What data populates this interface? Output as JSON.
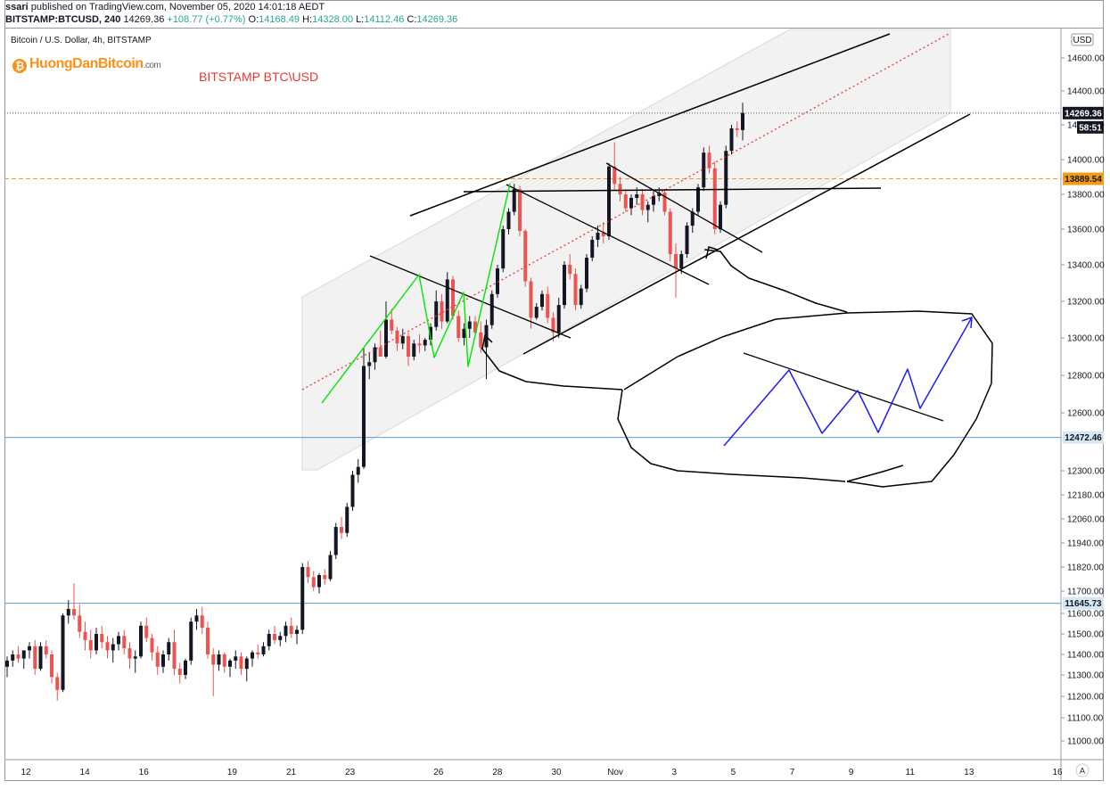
{
  "publish": {
    "user": "ssari",
    "text": " published on TradingView.com, November 05, 2020 14:01:18 AEDT"
  },
  "quote": {
    "symbol": "BITSTAMP:BTCUSD, 240",
    "last": "14269.36",
    "change": "+108.77 (+0.77%)",
    "o_label": "O:",
    "o": "14168.49",
    "h_label": "H:",
    "h": "14328.00",
    "l_label": "L:",
    "l": "14112.46",
    "c_label": "C:",
    "c": "14269.36"
  },
  "header": {
    "symbol_title": "Bitcoin / U.S. Dollar, 4h, BITSTAMP",
    "brand": "HuongDanBitcoin",
    "brand_domain": ".com"
  },
  "annotation": "BITSTAMP BTC\\USD",
  "colors": {
    "up": "#131722",
    "down": "#ef5350",
    "green_lines": "#00e600",
    "blue_pattern": "#1e1ef0",
    "hline": "#5b9bd5",
    "orange": "#f39c12",
    "channel_mid": "#e53935"
  },
  "chart_data": {
    "type": "candlestick",
    "symbol": "BTCUSD",
    "timeframe": "4h",
    "currency_label": "USD",
    "price_ticks": [
      "14600.00",
      "14400.00",
      "14200.00",
      "14000.00",
      "13800.00",
      "13600.00",
      "13400.00",
      "13200.00",
      "13000.00",
      "12800.00",
      "12600.00",
      "12300.00",
      "12180.00",
      "12060.00",
      "11940.00",
      "11820.00",
      "11700.00",
      "11600.00",
      "11500.00",
      "11400.00",
      "11300.00",
      "11200.00",
      "11100.00",
      "11000.00"
    ],
    "time_ticks": [
      "12",
      "14",
      "16",
      "19",
      "21",
      "23",
      "26",
      "28",
      "30",
      "Nov",
      "3",
      "5",
      "7",
      "9",
      "11",
      "13",
      "16"
    ],
    "price_labels": [
      {
        "value": "14269.36",
        "style": "last"
      },
      {
        "value": "58:51",
        "style": "countdown"
      },
      {
        "value": "13889.54",
        "style": "orange"
      },
      {
        "value": "12472.46",
        "style": "blue"
      },
      {
        "value": "11645.73",
        "style": "blue"
      }
    ],
    "horizontal_lines": [
      {
        "price": 14269.36,
        "style": "dotted"
      },
      {
        "price": 13889.54,
        "style": "dashed-orange"
      },
      {
        "price": 12472.46,
        "style": "blue"
      },
      {
        "price": 11645.73,
        "style": "blue"
      }
    ],
    "candles": [
      [
        11340,
        11390,
        11290,
        11370
      ],
      [
        11370,
        11420,
        11340,
        11400
      ],
      [
        11400,
        11440,
        11360,
        11380
      ],
      [
        11380,
        11410,
        11330,
        11420
      ],
      [
        11420,
        11460,
        11380,
        11440
      ],
      [
        11440,
        11470,
        11300,
        11330
      ],
      [
        11330,
        11460,
        11320,
        11440
      ],
      [
        11440,
        11470,
        11380,
        11400
      ],
      [
        11400,
        11420,
        11260,
        11290
      ],
      [
        11290,
        11310,
        11180,
        11230
      ],
      [
        11230,
        11600,
        11220,
        11590
      ],
      [
        11590,
        11660,
        11550,
        11620
      ],
      [
        11620,
        11740,
        11570,
        11590
      ],
      [
        11590,
        11640,
        11480,
        11510
      ],
      [
        11510,
        11560,
        11420,
        11470
      ],
      [
        11470,
        11520,
        11380,
        11420
      ],
      [
        11420,
        11530,
        11400,
        11500
      ],
      [
        11500,
        11540,
        11430,
        11460
      ],
      [
        11460,
        11490,
        11380,
        11420
      ],
      [
        11420,
        11480,
        11360,
        11450
      ],
      [
        11450,
        11510,
        11420,
        11490
      ],
      [
        11490,
        11520,
        11400,
        11430
      ],
      [
        11430,
        11460,
        11330,
        11380
      ],
      [
        11380,
        11420,
        11310,
        11390
      ],
      [
        11390,
        11560,
        11380,
        11540
      ],
      [
        11540,
        11580,
        11460,
        11480
      ],
      [
        11480,
        11500,
        11370,
        11410
      ],
      [
        11410,
        11440,
        11300,
        11340
      ],
      [
        11340,
        11420,
        11310,
        11400
      ],
      [
        11400,
        11480,
        11370,
        11460
      ],
      [
        11460,
        11520,
        11300,
        11330
      ],
      [
        11330,
        11360,
        11260,
        11300
      ],
      [
        11300,
        11380,
        11280,
        11370
      ],
      [
        11370,
        11580,
        11350,
        11560
      ],
      [
        11560,
        11620,
        11520,
        11590
      ],
      [
        11590,
        11630,
        11500,
        11530
      ],
      [
        11530,
        11560,
        11380,
        11400
      ],
      [
        11400,
        11430,
        11200,
        11350
      ],
      [
        11350,
        11420,
        11320,
        11400
      ],
      [
        11400,
        11410,
        11310,
        11340
      ],
      [
        11340,
        11380,
        11290,
        11370
      ],
      [
        11370,
        11420,
        11330,
        11390
      ],
      [
        11390,
        11410,
        11300,
        11330
      ],
      [
        11330,
        11390,
        11270,
        11380
      ],
      [
        11380,
        11420,
        11340,
        11410
      ],
      [
        11410,
        11450,
        11380,
        11400
      ],
      [
        11400,
        11460,
        11390,
        11440
      ],
      [
        11440,
        11520,
        11420,
        11500
      ],
      [
        11500,
        11540,
        11450,
        11470
      ],
      [
        11470,
        11510,
        11440,
        11490
      ],
      [
        11490,
        11560,
        11460,
        11540
      ],
      [
        11540,
        11580,
        11480,
        11500
      ],
      [
        11500,
        11540,
        11450,
        11520
      ],
      [
        11520,
        11840,
        11500,
        11820
      ],
      [
        11820,
        11850,
        11740,
        11770
      ],
      [
        11770,
        11800,
        11700,
        11720
      ],
      [
        11720,
        11790,
        11690,
        11780
      ],
      [
        11780,
        11810,
        11730,
        11760
      ],
      [
        11760,
        11900,
        11750,
        11880
      ],
      [
        11880,
        12040,
        11860,
        12020
      ],
      [
        12020,
        12070,
        11960,
        11990
      ],
      [
        11990,
        12140,
        11970,
        12120
      ],
      [
        12120,
        12300,
        12100,
        12280
      ],
      [
        12280,
        12360,
        12240,
        12320
      ],
      [
        12320,
        12950,
        12310,
        12850
      ],
      [
        12850,
        12920,
        12780,
        12870
      ],
      [
        12870,
        12970,
        12830,
        12950
      ],
      [
        12950,
        13040,
        12900,
        12900
      ],
      [
        12900,
        13200,
        12890,
        13100
      ],
      [
        13100,
        13160,
        13020,
        13040
      ],
      [
        13040,
        13060,
        12930,
        12970
      ],
      [
        12970,
        13050,
        12940,
        13010
      ],
      [
        13010,
        13030,
        12850,
        12900
      ],
      [
        12900,
        12990,
        12880,
        12970
      ],
      [
        12970,
        13020,
        12920,
        12960
      ],
      [
        12960,
        13000,
        12930,
        12990
      ],
      [
        12990,
        13080,
        12960,
        13060
      ],
      [
        13060,
        13260,
        13040,
        13200
      ],
      [
        13200,
        13240,
        13050,
        13090
      ],
      [
        13090,
        13360,
        13080,
        13320
      ],
      [
        13320,
        13340,
        13100,
        13120
      ],
      [
        13120,
        13150,
        12980,
        13000
      ],
      [
        13000,
        13080,
        12960,
        13050
      ],
      [
        13050,
        13120,
        13000,
        13090
      ],
      [
        13090,
        13120,
        13010,
        13030
      ],
      [
        13030,
        13090,
        12920,
        12950
      ],
      [
        12950,
        13100,
        12780,
        13070
      ],
      [
        13070,
        13260,
        13050,
        13240
      ],
      [
        13240,
        13400,
        13220,
        13380
      ],
      [
        13380,
        13620,
        13360,
        13600
      ],
      [
        13600,
        13720,
        13570,
        13700
      ],
      [
        13700,
        13860,
        13680,
        13830
      ],
      [
        13830,
        13850,
        13560,
        13590
      ],
      [
        13590,
        13600,
        13280,
        13310
      ],
      [
        13310,
        13330,
        13050,
        13110
      ],
      [
        13110,
        13190,
        13100,
        13170
      ],
      [
        13170,
        13260,
        13150,
        13240
      ],
      [
        13240,
        13280,
        13080,
        13110
      ],
      [
        13110,
        13140,
        12980,
        13030
      ],
      [
        13030,
        13220,
        13000,
        13180
      ],
      [
        13180,
        13420,
        13160,
        13400
      ],
      [
        13400,
        13460,
        13320,
        13350
      ],
      [
        13350,
        13380,
        13150,
        13180
      ],
      [
        13180,
        13290,
        13160,
        13270
      ],
      [
        13270,
        13460,
        13250,
        13440
      ],
      [
        13440,
        13560,
        13420,
        13540
      ],
      [
        13540,
        13620,
        13500,
        13580
      ],
      [
        13580,
        13640,
        13520,
        13560
      ],
      [
        13560,
        13980,
        13540,
        13960
      ],
      [
        13960,
        14100,
        13820,
        13860
      ],
      [
        13860,
        13900,
        13760,
        13800
      ],
      [
        13800,
        13830,
        13700,
        13720
      ],
      [
        13720,
        13800,
        13680,
        13780
      ],
      [
        13780,
        13840,
        13740,
        13800
      ],
      [
        13800,
        13830,
        13680,
        13710
      ],
      [
        13710,
        13760,
        13640,
        13740
      ],
      [
        13740,
        13820,
        13700,
        13790
      ],
      [
        13790,
        13840,
        13760,
        13810
      ],
      [
        13810,
        13830,
        13680,
        13700
      ],
      [
        13700,
        13720,
        13420,
        13460
      ],
      [
        13460,
        13520,
        13220,
        13380
      ],
      [
        13380,
        13480,
        13350,
        13460
      ],
      [
        13460,
        13640,
        13440,
        13620
      ],
      [
        13620,
        13720,
        13580,
        13700
      ],
      [
        13700,
        13860,
        13680,
        13840
      ],
      [
        13840,
        14070,
        13820,
        14040
      ],
      [
        14040,
        14080,
        13920,
        13950
      ],
      [
        13950,
        13990,
        13570,
        13600
      ],
      [
        13600,
        13760,
        13580,
        13740
      ],
      [
        13740,
        14080,
        13720,
        14050
      ],
      [
        14050,
        14200,
        14030,
        14180
      ],
      [
        14180,
        14220,
        14130,
        14170
      ],
      [
        14170,
        14330,
        14110,
        14270
      ]
    ]
  }
}
